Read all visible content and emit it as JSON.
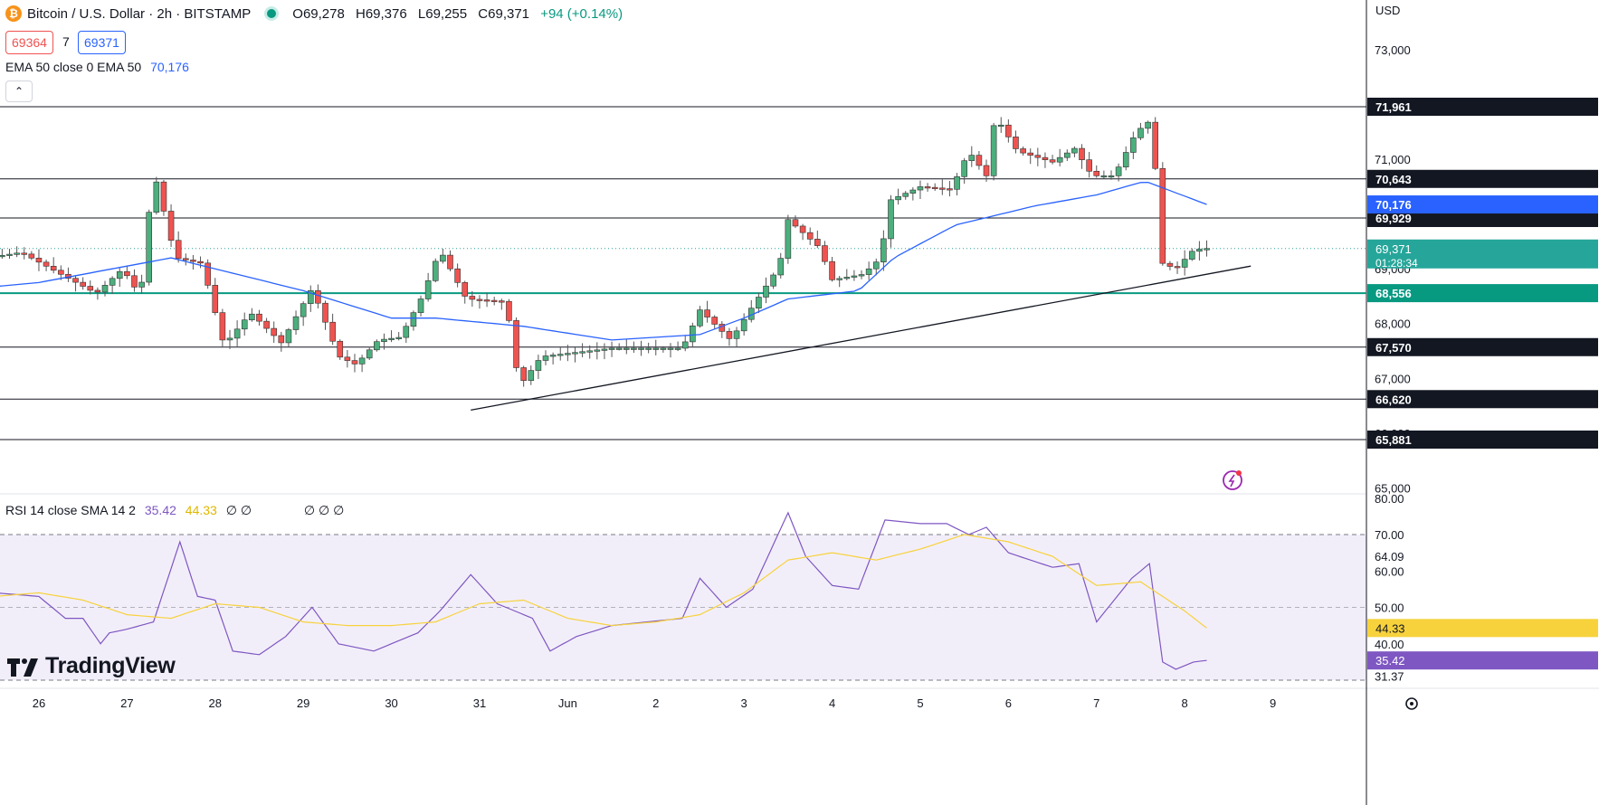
{
  "header": {
    "symbol_title": "Bitcoin / U.S. Dollar · 2h · BITSTAMP",
    "coin_icon": "bitcoin-icon",
    "ohlc": {
      "open": "O69,278",
      "high": "H69,376",
      "low": "L69,255",
      "close": "C69,371",
      "change": "+94 (+0.14%)"
    },
    "sell_price": "69364",
    "spread": "7",
    "buy_price": "69371"
  },
  "legends": {
    "ema_label": "EMA 50 close 0 EMA 50",
    "ema_value": "70,176",
    "rsi_label": "RSI 14 close SMA 14 2",
    "rsi_value": "35.42",
    "rsi_sma_value": "44.33",
    "rsi_extra": "∅ ∅",
    "rsi_extra2": "∅ ∅ ∅"
  },
  "axis": {
    "currency": "USD"
  },
  "brand": {
    "logo_text": "TradingView"
  },
  "colors": {
    "up": "#26a69a",
    "up_fill": "#4caf7d",
    "down": "#ef5350",
    "ema": "#2962ff",
    "rsi": "#7e57c2",
    "rsi_sma": "#f7d23c",
    "support": "#089981",
    "level": "#131722"
  },
  "chart_data": [
    {
      "type": "candlestick",
      "title": "Bitcoin / U.S. Dollar · 2h · BITSTAMP",
      "x_ticks": [
        "26",
        "27",
        "28",
        "29",
        "30",
        "31",
        "Jun",
        "2",
        "3",
        "4",
        "5",
        "6",
        "7",
        "8",
        "9"
      ],
      "y_ticks": [
        65000,
        66000,
        67000,
        68000,
        69000,
        70000,
        71000,
        72000,
        73000
      ],
      "ylim": [
        64600,
        73600
      ],
      "price_levels": [
        71961,
        70643,
        69929,
        67570,
        66620,
        65881
      ],
      "support_level": 68556,
      "ema50_current": 70176,
      "last_price": 69371,
      "countdown": "01:28:34",
      "trendline": [
        {
          "day": 30.9,
          "value": 66420
        },
        {
          "day": 39.75,
          "value": 69050
        }
      ],
      "ohlc_anchors": [
        {
          "day": 25.0,
          "value": 69100
        },
        {
          "day": 25.8,
          "value": 69300
        },
        {
          "day": 26.25,
          "value": 68900
        },
        {
          "day": 26.65,
          "value": 68550
        },
        {
          "day": 26.95,
          "value": 69000
        },
        {
          "day": 27.15,
          "value": 68500
        },
        {
          "day": 27.3,
          "value": 70800
        },
        {
          "day": 27.55,
          "value": 69200
        },
        {
          "day": 27.85,
          "value": 69100
        },
        {
          "day": 28.1,
          "value": 67600
        },
        {
          "day": 28.4,
          "value": 68200
        },
        {
          "day": 28.75,
          "value": 67650
        },
        {
          "day": 29.1,
          "value": 68650
        },
        {
          "day": 29.4,
          "value": 67400
        },
        {
          "day": 29.6,
          "value": 67250
        },
        {
          "day": 29.85,
          "value": 67700
        },
        {
          "day": 30.1,
          "value": 67750
        },
        {
          "day": 30.35,
          "value": 68500
        },
        {
          "day": 30.55,
          "value": 69350
        },
        {
          "day": 30.85,
          "value": 68450
        },
        {
          "day": 31.3,
          "value": 68400
        },
        {
          "day": 31.45,
          "value": 66850
        },
        {
          "day": 31.7,
          "value": 67400
        },
        {
          "day": 32.5,
          "value": 67550
        },
        {
          "day": 33.3,
          "value": 67550
        },
        {
          "day": 33.5,
          "value": 68250
        },
        {
          "day": 33.85,
          "value": 67700
        },
        {
          "day": 34.05,
          "value": 68200
        },
        {
          "day": 34.4,
          "value": 69050
        },
        {
          "day": 34.5,
          "value": 69900
        },
        {
          "day": 34.85,
          "value": 69400
        },
        {
          "day": 35.0,
          "value": 68800
        },
        {
          "day": 35.35,
          "value": 68900
        },
        {
          "day": 35.55,
          "value": 69200
        },
        {
          "day": 35.65,
          "value": 70250
        },
        {
          "day": 36.0,
          "value": 70500
        },
        {
          "day": 36.35,
          "value": 70450
        },
        {
          "day": 36.55,
          "value": 71150
        },
        {
          "day": 36.75,
          "value": 70700
        },
        {
          "day": 36.85,
          "value": 71800
        },
        {
          "day": 37.1,
          "value": 71150
        },
        {
          "day": 37.5,
          "value": 70950
        },
        {
          "day": 37.75,
          "value": 71200
        },
        {
          "day": 37.95,
          "value": 70700
        },
        {
          "day": 38.2,
          "value": 70700
        },
        {
          "day": 38.45,
          "value": 71500
        },
        {
          "day": 38.6,
          "value": 71700
        },
        {
          "day": 38.7,
          "value": 70400
        },
        {
          "day": 38.75,
          "value": 69100
        },
        {
          "day": 38.9,
          "value": 69000
        },
        {
          "day": 39.1,
          "value": 69350
        },
        {
          "day": 39.25,
          "value": 69371
        }
      ],
      "ema50_anchors": [
        {
          "day": 25.0,
          "value": 68600
        },
        {
          "day": 26.0,
          "value": 68750
        },
        {
          "day": 27.5,
          "value": 69200
        },
        {
          "day": 28.0,
          "value": 69000
        },
        {
          "day": 29.0,
          "value": 68600
        },
        {
          "day": 30.0,
          "value": 68100
        },
        {
          "day": 30.5,
          "value": 68100
        },
        {
          "day": 31.5,
          "value": 67950
        },
        {
          "day": 32.5,
          "value": 67700
        },
        {
          "day": 33.5,
          "value": 67800
        },
        {
          "day": 34.0,
          "value": 68100
        },
        {
          "day": 34.5,
          "value": 68450
        },
        {
          "day": 35.3,
          "value": 68600
        },
        {
          "day": 35.7,
          "value": 69200
        },
        {
          "day": 36.4,
          "value": 69800
        },
        {
          "day": 37.3,
          "value": 70150
        },
        {
          "day": 38.0,
          "value": 70350
        },
        {
          "day": 38.55,
          "value": 70600
        },
        {
          "day": 38.8,
          "value": 70450
        },
        {
          "day": 39.25,
          "value": 70176
        }
      ]
    },
    {
      "type": "line",
      "title": "RSI 14 close SMA 14 2",
      "ylim": [
        28,
        80
      ],
      "y_ticks": [
        40,
        50,
        60,
        70,
        80
      ],
      "bands": [
        70,
        30
      ],
      "midline": 50,
      "marked_values": [
        64.09,
        44.33,
        35.42,
        31.37
      ],
      "series": [
        {
          "name": "RSI",
          "anchors": [
            {
              "day": 25.0,
              "value": 55
            },
            {
              "day": 25.5,
              "value": 54
            },
            {
              "day": 26.0,
              "value": 53
            },
            {
              "day": 26.3,
              "value": 47
            },
            {
              "day": 26.5,
              "value": 47
            },
            {
              "day": 26.7,
              "value": 40
            },
            {
              "day": 26.8,
              "value": 43
            },
            {
              "day": 27.0,
              "value": 44
            },
            {
              "day": 27.3,
              "value": 46
            },
            {
              "day": 27.6,
              "value": 68
            },
            {
              "day": 27.8,
              "value": 53
            },
            {
              "day": 28.0,
              "value": 52
            },
            {
              "day": 28.2,
              "value": 38
            },
            {
              "day": 28.5,
              "value": 37
            },
            {
              "day": 28.8,
              "value": 42
            },
            {
              "day": 29.1,
              "value": 50
            },
            {
              "day": 29.4,
              "value": 40
            },
            {
              "day": 29.8,
              "value": 38
            },
            {
              "day": 30.3,
              "value": 43
            },
            {
              "day": 30.55,
              "value": 49
            },
            {
              "day": 30.9,
              "value": 59
            },
            {
              "day": 31.2,
              "value": 51
            },
            {
              "day": 31.6,
              "value": 47
            },
            {
              "day": 31.8,
              "value": 38
            },
            {
              "day": 32.1,
              "value": 42
            },
            {
              "day": 32.5,
              "value": 45
            },
            {
              "day": 33.3,
              "value": 47
            },
            {
              "day": 33.5,
              "value": 58
            },
            {
              "day": 33.8,
              "value": 50
            },
            {
              "day": 34.1,
              "value": 55
            },
            {
              "day": 34.5,
              "value": 76
            },
            {
              "day": 34.7,
              "value": 64
            },
            {
              "day": 35.0,
              "value": 56
            },
            {
              "day": 35.3,
              "value": 55
            },
            {
              "day": 35.6,
              "value": 74
            },
            {
              "day": 36.0,
              "value": 73
            },
            {
              "day": 36.3,
              "value": 73
            },
            {
              "day": 36.55,
              "value": 70
            },
            {
              "day": 36.75,
              "value": 72
            },
            {
              "day": 37.0,
              "value": 65
            },
            {
              "day": 37.5,
              "value": 61
            },
            {
              "day": 37.8,
              "value": 62
            },
            {
              "day": 38.0,
              "value": 46
            },
            {
              "day": 38.4,
              "value": 58
            },
            {
              "day": 38.6,
              "value": 62
            },
            {
              "day": 38.75,
              "value": 35
            },
            {
              "day": 38.9,
              "value": 33
            },
            {
              "day": 39.1,
              "value": 35
            },
            {
              "day": 39.25,
              "value": 35.42
            }
          ]
        },
        {
          "name": "SMA",
          "anchors": [
            {
              "day": 25.0,
              "value": 50
            },
            {
              "day": 25.5,
              "value": 53
            },
            {
              "day": 26.0,
              "value": 54
            },
            {
              "day": 26.5,
              "value": 52
            },
            {
              "day": 27.0,
              "value": 48
            },
            {
              "day": 27.5,
              "value": 47
            },
            {
              "day": 28.0,
              "value": 51
            },
            {
              "day": 28.5,
              "value": 50
            },
            {
              "day": 29.0,
              "value": 46
            },
            {
              "day": 29.5,
              "value": 45
            },
            {
              "day": 30.0,
              "value": 45
            },
            {
              "day": 30.5,
              "value": 46
            },
            {
              "day": 31.0,
              "value": 51
            },
            {
              "day": 31.5,
              "value": 52
            },
            {
              "day": 32.0,
              "value": 47
            },
            {
              "day": 32.5,
              "value": 45
            },
            {
              "day": 33.0,
              "value": 46
            },
            {
              "day": 33.5,
              "value": 48
            },
            {
              "day": 34.0,
              "value": 54
            },
            {
              "day": 34.5,
              "value": 63
            },
            {
              "day": 35.0,
              "value": 65
            },
            {
              "day": 35.5,
              "value": 63
            },
            {
              "day": 36.0,
              "value": 66
            },
            {
              "day": 36.5,
              "value": 70
            },
            {
              "day": 37.0,
              "value": 68
            },
            {
              "day": 37.5,
              "value": 64
            },
            {
              "day": 38.0,
              "value": 56
            },
            {
              "day": 38.5,
              "value": 57
            },
            {
              "day": 39.0,
              "value": 49
            },
            {
              "day": 39.25,
              "value": 44.33
            }
          ]
        }
      ]
    }
  ]
}
